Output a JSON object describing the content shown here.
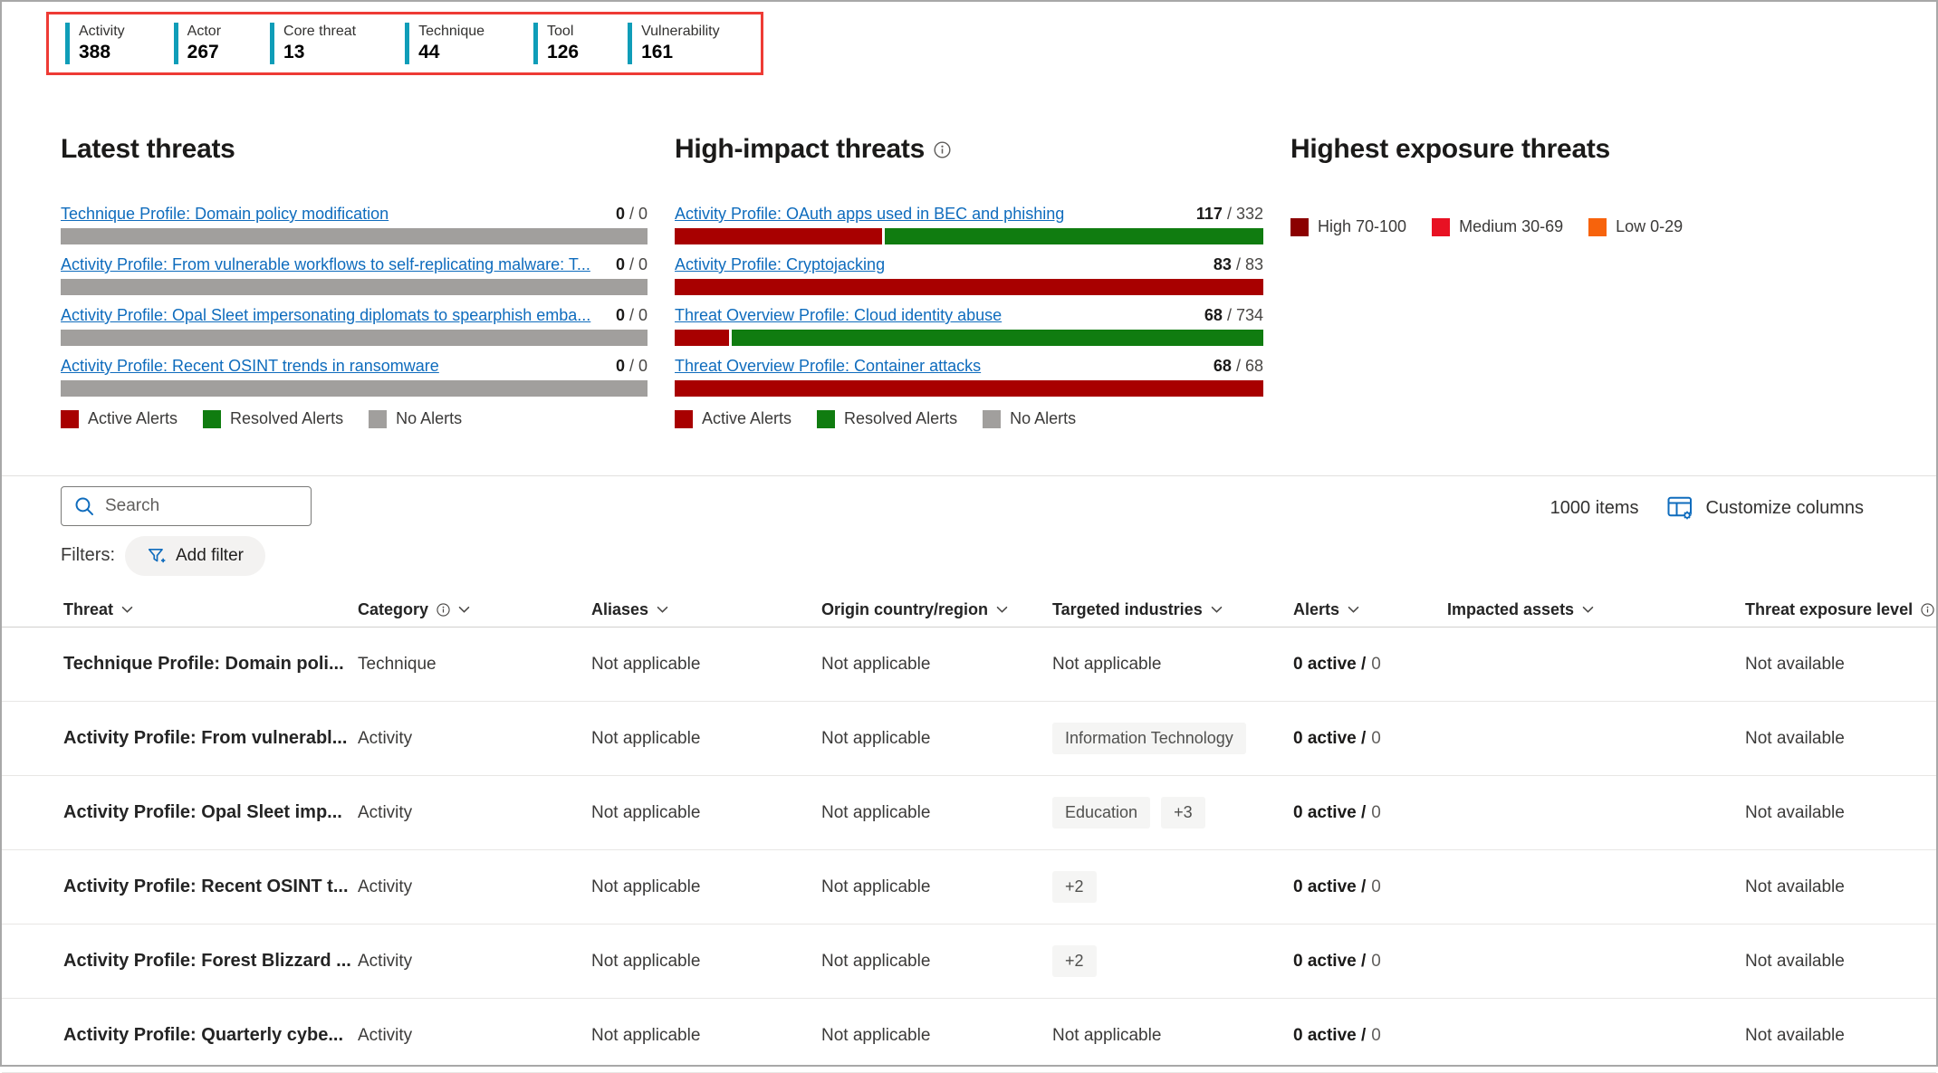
{
  "ui": {
    "separator": " / "
  },
  "colors": {
    "accent_teal": "#0f9db8",
    "annotation_red": "#ee3b35",
    "active_red": "#a80000",
    "resolved_green": "#107c10",
    "no_alerts_gray": "#a19f9d",
    "high_maroon": "#8b0000",
    "medium_red": "#e81123",
    "low_orange": "#f7630c",
    "link_blue": "#0f6cbd",
    "icon_blue": "#0f6cbd"
  },
  "stats": {
    "items": [
      {
        "label": "Activity",
        "value": "388"
      },
      {
        "label": "Actor",
        "value": "267"
      },
      {
        "label": "Core threat",
        "value": "13"
      },
      {
        "label": "Technique",
        "value": "44"
      },
      {
        "label": "Tool",
        "value": "126"
      },
      {
        "label": "Vulnerability",
        "value": "161"
      }
    ]
  },
  "latest_threats": {
    "title": "Latest threats",
    "items": [
      {
        "label": "Technique Profile: Domain policy modification",
        "active": "0",
        "total": "0"
      },
      {
        "label": "Activity Profile: From vulnerable workflows to self-replicating malware: T...",
        "active": "0",
        "total": "0"
      },
      {
        "label": "Activity Profile: Opal Sleet impersonating diplomats to spearphish emba...",
        "active": "0",
        "total": "0"
      },
      {
        "label": "Activity Profile: Recent OSINT trends in ransomware",
        "active": "0",
        "total": "0"
      }
    ]
  },
  "high_impact": {
    "title": "High-impact threats",
    "items": [
      {
        "label": "Activity Profile: OAuth apps used in BEC and phishing",
        "active": "117",
        "total": "332"
      },
      {
        "label": "Activity Profile: Cryptojacking",
        "active": "83",
        "total": "83"
      },
      {
        "label": "Threat Overview Profile: Cloud identity abuse",
        "active": "68",
        "total": "734"
      },
      {
        "label": "Threat Overview Profile: Container attacks",
        "active": "68",
        "total": "68"
      }
    ]
  },
  "alerts_legend": {
    "active": "Active Alerts",
    "resolved": "Resolved Alerts",
    "none": "No Alerts"
  },
  "exposure": {
    "title": "Highest exposure threats",
    "legend": [
      {
        "label": "High 70-100",
        "color": "#8b0000"
      },
      {
        "label": "Medium 30-69",
        "color": "#e81123"
      },
      {
        "label": "Low 0-29",
        "color": "#f7630c"
      }
    ]
  },
  "toolbar": {
    "search_placeholder": "Search",
    "items_count": "1000 items",
    "customize_label": "Customize columns",
    "filters_label": "Filters:",
    "add_filter_label": "Add filter"
  },
  "table": {
    "headers": {
      "threat": "Threat",
      "category": "Category",
      "aliases": "Aliases",
      "origin": "Origin country/region",
      "industries": "Targeted industries",
      "alerts": "Alerts",
      "impacted": "Impacted assets",
      "exposure": "Threat exposure level"
    },
    "rows": [
      {
        "threat": "Technique Profile: Domain poli...",
        "category": "Technique",
        "aliases": "Not applicable",
        "origin": "Not applicable",
        "industries_text": "Not applicable",
        "tags": [],
        "alerts_active": "0 active /",
        "alerts_total": "0",
        "impacted": "",
        "exposure": "Not available"
      },
      {
        "threat": "Activity Profile: From vulnerabl...",
        "category": "Activity",
        "aliases": "Not applicable",
        "origin": "Not applicable",
        "industries_text": "",
        "tags": [
          "Information Technology"
        ],
        "alerts_active": "0 active /",
        "alerts_total": "0",
        "impacted": "",
        "exposure": "Not available"
      },
      {
        "threat": "Activity Profile: Opal Sleet imp...",
        "category": "Activity",
        "aliases": "Not applicable",
        "origin": "Not applicable",
        "industries_text": "",
        "tags": [
          "Education",
          "+3"
        ],
        "alerts_active": "0 active /",
        "alerts_total": "0",
        "impacted": "",
        "exposure": "Not available"
      },
      {
        "threat": "Activity Profile: Recent OSINT t...",
        "category": "Activity",
        "aliases": "Not applicable",
        "origin": "Not applicable",
        "industries_text": "",
        "tags": [
          "+2"
        ],
        "alerts_active": "0 active /",
        "alerts_total": "0",
        "impacted": "",
        "exposure": "Not available"
      },
      {
        "threat": "Activity Profile: Forest Blizzard ...",
        "category": "Activity",
        "aliases": "Not applicable",
        "origin": "Not applicable",
        "industries_text": "",
        "tags": [
          "+2"
        ],
        "alerts_active": "0 active /",
        "alerts_total": "0",
        "impacted": "",
        "exposure": "Not available"
      },
      {
        "threat": "Activity Profile: Quarterly cybe...",
        "category": "Activity",
        "aliases": "Not applicable",
        "origin": "Not applicable",
        "industries_text": "Not applicable",
        "tags": [],
        "alerts_active": "0 active /",
        "alerts_total": "0",
        "impacted": "",
        "exposure": "Not available"
      }
    ]
  }
}
